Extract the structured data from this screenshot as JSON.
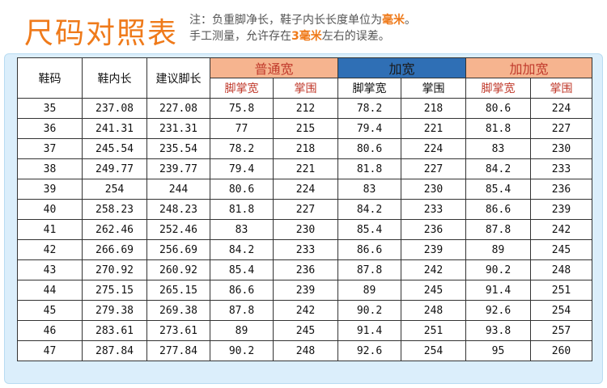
{
  "header": {
    "title": "尺码对照表",
    "note_line1_prefix": "注：负重脚净长，鞋子内长长度单位为",
    "note_line1_unit": "毫米",
    "note_line1_suffix": "。",
    "note_line2_prefix": "手工测量，允许存在",
    "note_line2_error": "3毫米",
    "note_line2_suffix": "左右的误差。"
  },
  "table": {
    "columns": {
      "size": "鞋码",
      "inner_length": "鞋内长",
      "foot_length": "建议脚长"
    },
    "groups": [
      {
        "label": "普通宽",
        "sub": [
          "脚掌宽",
          "掌围"
        ]
      },
      {
        "label": "加宽",
        "sub": [
          "脚掌宽",
          "掌围"
        ]
      },
      {
        "label": "加加宽",
        "sub": [
          "脚掌宽",
          "掌围"
        ]
      }
    ],
    "rows": [
      [
        "35",
        "237.08",
        "227.08",
        "75.8",
        "212",
        "78.2",
        "218",
        "80.6",
        "224"
      ],
      [
        "36",
        "241.31",
        "231.31",
        "77",
        "215",
        "79.4",
        "221",
        "81.8",
        "227"
      ],
      [
        "37",
        "245.54",
        "235.54",
        "78.2",
        "218",
        "80.6",
        "224",
        "83",
        "230"
      ],
      [
        "38",
        "249.77",
        "239.77",
        "79.4",
        "221",
        "81.8",
        "227",
        "84.2",
        "233"
      ],
      [
        "39",
        "254",
        "244",
        "80.6",
        "224",
        "83",
        "230",
        "85.4",
        "236"
      ],
      [
        "40",
        "258.23",
        "248.23",
        "81.8",
        "227",
        "84.2",
        "233",
        "86.6",
        "239"
      ],
      [
        "41",
        "262.46",
        "252.46",
        "83",
        "230",
        "85.4",
        "236",
        "87.8",
        "242"
      ],
      [
        "42",
        "266.69",
        "256.69",
        "84.2",
        "233",
        "86.6",
        "239",
        "89",
        "245"
      ],
      [
        "43",
        "270.92",
        "260.92",
        "85.4",
        "236",
        "87.8",
        "242",
        "90.2",
        "248"
      ],
      [
        "44",
        "275.15",
        "265.15",
        "86.6",
        "239",
        "89",
        "245",
        "91.4",
        "251"
      ],
      [
        "45",
        "279.38",
        "269.38",
        "87.8",
        "242",
        "90.2",
        "248",
        "92.6",
        "254"
      ],
      [
        "46",
        "283.61",
        "273.61",
        "89",
        "245",
        "91.4",
        "251",
        "93.8",
        "257"
      ],
      [
        "47",
        "287.84",
        "277.84",
        "90.2",
        "248",
        "92.6",
        "254",
        "95",
        "260"
      ]
    ]
  },
  "colors": {
    "title_orange": "#ef7a1a",
    "group_salmon": "#f6b48f",
    "group_blue": "#2f6fb5",
    "panel_bg": "#dbeefb",
    "red_text": "#c0392b"
  }
}
